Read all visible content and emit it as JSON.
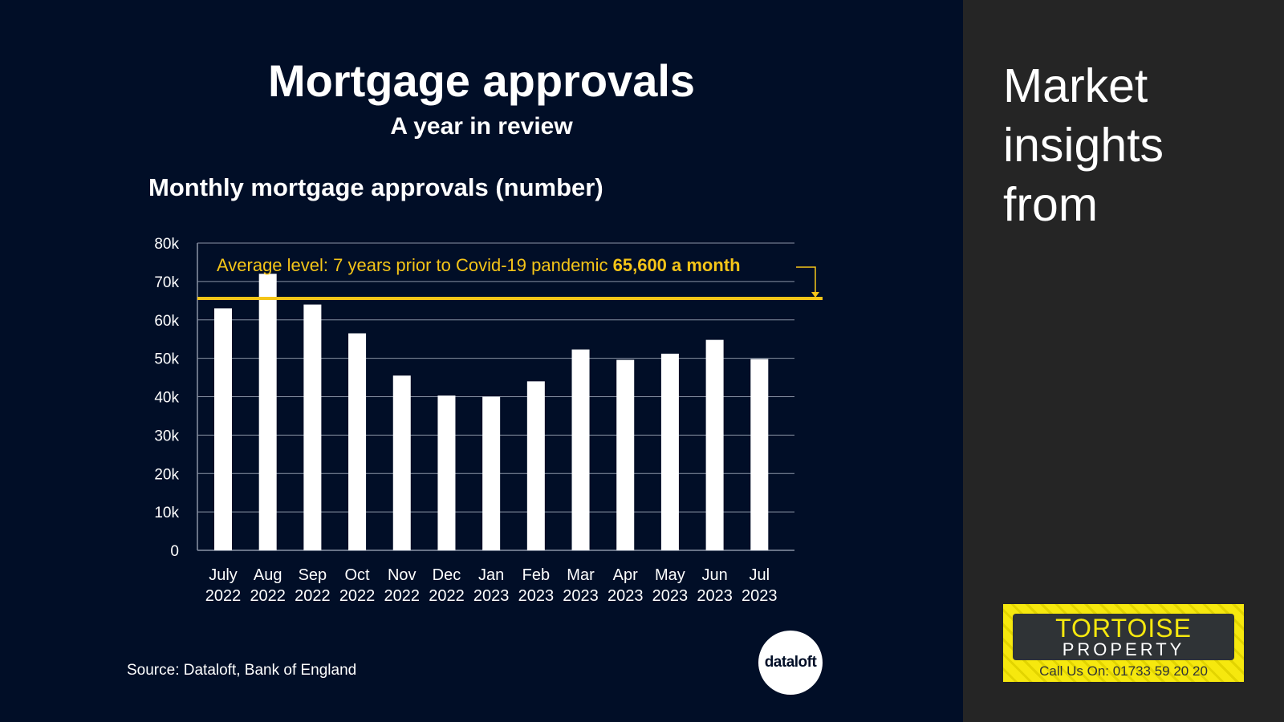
{
  "slide": {
    "title": "Mortgage approvals",
    "subtitle": "A year in review",
    "chart_heading": "Monthly mortgage approvals (number)",
    "source": "Source: Dataloft, Bank of England",
    "dataloft_logo_text": "dataloft"
  },
  "side": {
    "heading_line1": "Market",
    "heading_line2": "insights",
    "heading_line3": "from"
  },
  "brand": {
    "name": "TORTOISE",
    "sub": "PROPERTY",
    "phone": "Call Us On: 01733 59 20 20"
  },
  "colors": {
    "background": "#010e27",
    "side_background": "#252525",
    "bars": "#ffffff",
    "average_line": "#f5c518",
    "gridlines": "#8a93a5"
  },
  "chart_data": {
    "type": "bar",
    "categories": [
      [
        "July",
        "2022"
      ],
      [
        "Aug",
        "2022"
      ],
      [
        "Sep",
        "2022"
      ],
      [
        "Oct",
        "2022"
      ],
      [
        "Nov",
        "2022"
      ],
      [
        "Dec",
        "2022"
      ],
      [
        "Jan",
        "2023"
      ],
      [
        "Feb",
        "2023"
      ],
      [
        "Mar",
        "2023"
      ],
      [
        "Apr",
        "2023"
      ],
      [
        "May",
        "2023"
      ],
      [
        "Jun",
        "2023"
      ],
      [
        "Jul",
        "2023"
      ]
    ],
    "values": [
      63000,
      72000,
      64000,
      56500,
      45500,
      40300,
      40000,
      44000,
      52300,
      49600,
      51200,
      54800,
      49800
    ],
    "ylim": [
      0,
      80000
    ],
    "yticks": [
      0,
      10000,
      20000,
      30000,
      40000,
      50000,
      60000,
      70000,
      80000
    ],
    "ytick_labels": [
      "0",
      "10k",
      "20k",
      "30k",
      "40k",
      "50k",
      "60k",
      "70k",
      "80k"
    ],
    "grid": true,
    "reference_line": {
      "value": 65600,
      "label": "Average level: 7 years prior to Covid-19 pandemic",
      "label_bold": "65,600 a month"
    }
  }
}
